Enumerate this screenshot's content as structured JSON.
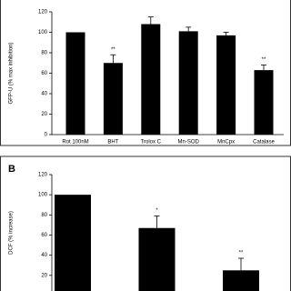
{
  "chart_data": [
    {
      "type": "bar",
      "ylabel": "GFP-U (% max inhibition)",
      "categories": [
        "Rot 100nM",
        "BHT",
        "Trolox C",
        "Mn-SOD",
        "MnCpx",
        "Catalase"
      ],
      "values": [
        100,
        70,
        108,
        101,
        97,
        63
      ],
      "errors": [
        0,
        8,
        7,
        4,
        3,
        5
      ],
      "annotations": [
        null,
        "**",
        null,
        null,
        null,
        "**"
      ],
      "color": "#000000",
      "ylim": [
        0,
        120
      ],
      "yticks": [
        0,
        20,
        40,
        60,
        80,
        100,
        120
      ]
    },
    {
      "type": "bar",
      "panel_label": "B",
      "ylabel": "DCF (% increase)",
      "categories": [
        null,
        null,
        null
      ],
      "values": [
        100,
        67,
        25
      ],
      "errors": [
        0,
        12,
        12
      ],
      "annotations": [
        null,
        "*",
        "**"
      ],
      "color": "#000000",
      "ylim": [
        0,
        120
      ],
      "yticks": [
        0,
        20,
        40,
        60,
        80,
        100,
        120
      ]
    }
  ]
}
